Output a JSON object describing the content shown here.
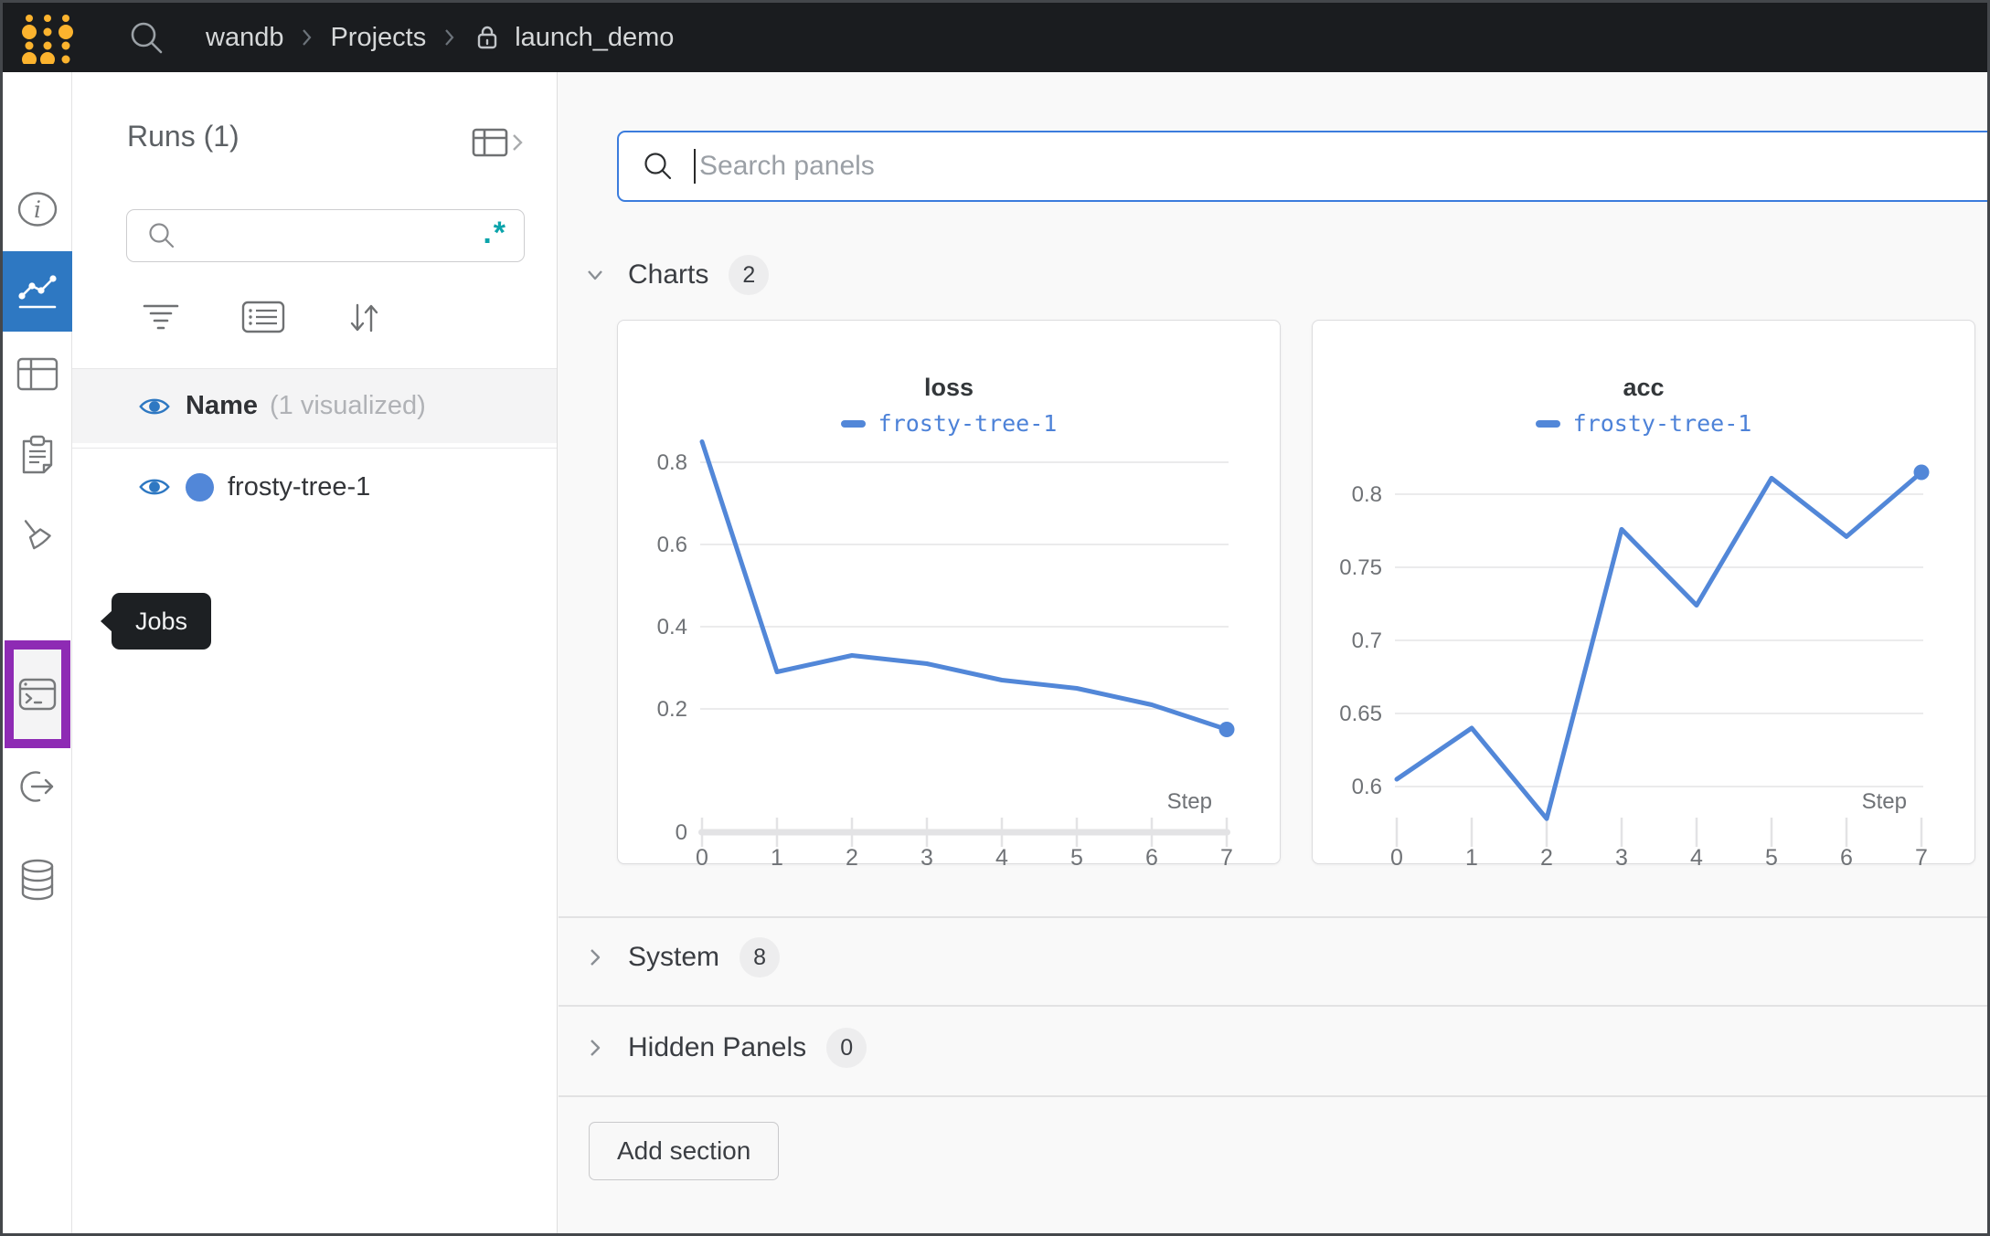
{
  "topbar": {
    "breadcrumb": {
      "home": "wandb",
      "section": "Projects",
      "project": "launch_demo"
    }
  },
  "rail": {
    "tooltip": "Jobs",
    "items": [
      {
        "icon": "info-icon"
      },
      {
        "icon": "workspace-chart-icon",
        "selected": true
      },
      {
        "icon": "runs-table-icon"
      },
      {
        "icon": "reports-clipboard-icon"
      },
      {
        "icon": "sweeps-broom-icon"
      },
      {
        "icon": "jobs-terminal-icon",
        "highlighted": true
      },
      {
        "icon": "launch-icon"
      },
      {
        "icon": "artifacts-database-icon"
      }
    ]
  },
  "runs": {
    "title": "Runs (1)",
    "search_placeholder": "",
    "regex_glyph": ".*",
    "header_label": "Name",
    "header_note": "(1 visualized)",
    "rows": [
      {
        "name": "frosty-tree-1",
        "color": "#5287d8",
        "visible": true
      }
    ]
  },
  "main": {
    "search_placeholder": "Search panels",
    "sections": [
      {
        "label": "Charts",
        "count": "2",
        "expanded": true
      },
      {
        "label": "System",
        "count": "8",
        "expanded": false
      },
      {
        "label": "Hidden Panels",
        "count": "0",
        "expanded": false
      }
    ],
    "add_section_label": "Add section"
  },
  "chart_data": [
    {
      "type": "line",
      "title": "loss",
      "xlabel": "Step",
      "x": [
        0,
        1,
        2,
        3,
        4,
        5,
        6,
        7
      ],
      "series": [
        {
          "name": "frosty-tree-1",
          "values": [
            0.85,
            0.29,
            0.33,
            0.31,
            0.27,
            0.25,
            0.21,
            0.15
          ]
        }
      ],
      "x_ticks": [
        "0",
        "1",
        "2",
        "3",
        "4",
        "5",
        "6",
        "7"
      ],
      "y_ticks": [
        0.2,
        0.4,
        0.6,
        0.8
      ],
      "baseline_label": "0",
      "ylim": [
        0,
        0.9
      ],
      "grid": "horizontal",
      "legend_position": "top",
      "line_color": "#5287d8",
      "end_marker": true
    },
    {
      "type": "line",
      "title": "acc",
      "xlabel": "Step",
      "x": [
        0,
        1,
        2,
        3,
        4,
        5,
        6,
        7
      ],
      "series": [
        {
          "name": "frosty-tree-1",
          "values": [
            0.605,
            0.64,
            0.578,
            0.776,
            0.724,
            0.811,
            0.771,
            0.815
          ]
        }
      ],
      "x_ticks": [
        "0",
        "1",
        "2",
        "3",
        "4",
        "5",
        "6",
        "7"
      ],
      "y_ticks": [
        0.6,
        0.65,
        0.7,
        0.75,
        0.8
      ],
      "baseline_label": null,
      "ylim": [
        0.572,
        0.83
      ],
      "grid": "horizontal",
      "legend_position": "top",
      "line_color": "#5287d8",
      "end_marker": true
    }
  ],
  "colors": {
    "accent_blue": "#2e78c2",
    "selected_purple": "#8e2bb4",
    "regex_teal": "#0ca4ab",
    "logo_gold": "#fcb32e",
    "run_blue": "#5287d8",
    "focus_blue": "#3b7cdd",
    "tooltip_bg": "#1d2023",
    "grid_gray": "#ebebec"
  }
}
